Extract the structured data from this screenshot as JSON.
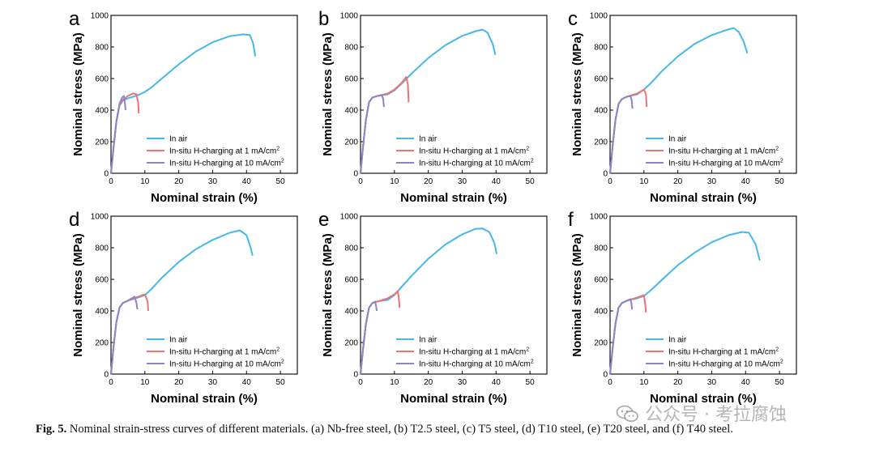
{
  "caption": {
    "label": "Fig. 5.",
    "text": "Nominal strain-stress curves of different materials. (a) Nb-free steel, (b) T2.5 steel, (c) T5 steel, (d) T10 steel, (e) T20 steel, and (f) T40 steel."
  },
  "watermark": {
    "text": "公众号 · 考拉腐蚀",
    "icon": "wechat-icon"
  },
  "colors": {
    "in_air": "#45b8ea",
    "h_1": "#f07272",
    "h_10": "#8a84c8",
    "axis": "#000000"
  },
  "chart_data": [
    {
      "panel": "a",
      "type": "line",
      "xlabel": "Nominal strain (%)",
      "ylabel": "Nominal stress (MPa)",
      "xlim": [
        0,
        55
      ],
      "ylim": [
        0,
        1000
      ],
      "xticks": [
        "0",
        "10",
        "20",
        "30",
        "40",
        "50"
      ],
      "yticks": [
        "0",
        "200",
        "400",
        "600",
        "800",
        "1000"
      ],
      "grid": false,
      "legend_position": "lower-right",
      "series": [
        {
          "name": "In air",
          "x": [
            0,
            0.8,
            1.6,
            2.5,
            3.5,
            5,
            8,
            10,
            12,
            15,
            20,
            25,
            30,
            35,
            39,
            41,
            42,
            42.6
          ],
          "y": [
            0,
            170,
            330,
            430,
            460,
            475,
            495,
            515,
            545,
            600,
            690,
            770,
            830,
            868,
            880,
            875,
            820,
            740
          ]
        },
        {
          "name": "In-situ H-charging at 1 mA/cm²",
          "x": [
            0,
            0.8,
            1.6,
            2.5,
            3.5,
            5,
            6.5,
            7.5,
            8.0,
            8.2
          ],
          "y": [
            0,
            170,
            330,
            430,
            465,
            490,
            505,
            500,
            450,
            380
          ]
        },
        {
          "name": "In-situ H-charging at 10 mA/cm²",
          "x": [
            0,
            0.8,
            1.6,
            2.5,
            3.3,
            3.8,
            4.1,
            4.3
          ],
          "y": [
            0,
            170,
            330,
            440,
            480,
            490,
            450,
            400
          ]
        }
      ]
    },
    {
      "panel": "b",
      "type": "line",
      "xlabel": "Nominal strain (%)",
      "ylabel": "Nominal stress (MPa)",
      "xlim": [
        0,
        55
      ],
      "ylim": [
        0,
        1000
      ],
      "xticks": [
        "0",
        "10",
        "20",
        "30",
        "40",
        "50"
      ],
      "yticks": [
        "0",
        "200",
        "400",
        "600",
        "800",
        "1000"
      ],
      "grid": false,
      "legend_position": "lower-right",
      "series": [
        {
          "name": "In air",
          "x": [
            0,
            0.8,
            1.6,
            2.5,
            3.5,
            5,
            8,
            10,
            12,
            15,
            20,
            25,
            30,
            34,
            36,
            37.5,
            39,
            39.8
          ],
          "y": [
            0,
            180,
            340,
            450,
            480,
            490,
            500,
            525,
            565,
            630,
            730,
            810,
            870,
            900,
            910,
            890,
            820,
            750
          ]
        },
        {
          "name": "In-situ H-charging at 1 mA/cm²",
          "x": [
            0,
            0.8,
            1.6,
            2.5,
            3.5,
            5,
            8,
            10,
            12,
            13.5,
            14,
            14.2
          ],
          "y": [
            0,
            180,
            340,
            450,
            480,
            490,
            505,
            530,
            570,
            610,
            560,
            450
          ]
        },
        {
          "name": "In-situ H-charging at 10 mA/cm²",
          "x": [
            0,
            0.8,
            1.6,
            2.5,
            3.5,
            5,
            6.3,
            6.7,
            6.9
          ],
          "y": [
            0,
            180,
            340,
            450,
            480,
            490,
            495,
            470,
            420
          ]
        }
      ]
    },
    {
      "panel": "c",
      "type": "line",
      "xlabel": "Nominal strain (%)",
      "ylabel": "Nominal stress (MPa)",
      "xlim": [
        0,
        55
      ],
      "ylim": [
        0,
        1000
      ],
      "xticks": [
        "0",
        "10",
        "20",
        "30",
        "40",
        "50"
      ],
      "yticks": [
        "0",
        "200",
        "400",
        "600",
        "800",
        "1000"
      ],
      "grid": false,
      "legend_position": "lower-right",
      "series": [
        {
          "name": "In air",
          "x": [
            0,
            0.8,
            1.6,
            2.5,
            3.5,
            5,
            8,
            10,
            12,
            15,
            20,
            25,
            30,
            34,
            36.5,
            38,
            39.5,
            40.5
          ],
          "y": [
            0,
            180,
            340,
            440,
            470,
            485,
            500,
            530,
            570,
            640,
            740,
            820,
            875,
            905,
            920,
            895,
            830,
            760
          ]
        },
        {
          "name": "In-situ H-charging at 1 mA/cm²",
          "x": [
            0,
            0.8,
            1.6,
            2.5,
            3.5,
            5,
            8,
            10,
            10.6,
            10.8
          ],
          "y": [
            0,
            180,
            340,
            440,
            470,
            485,
            505,
            530,
            500,
            420
          ]
        },
        {
          "name": "In-situ H-charging at 10 mA/cm²",
          "x": [
            0,
            0.8,
            1.6,
            2.5,
            3.5,
            5,
            6,
            6.4,
            6.6
          ],
          "y": [
            0,
            180,
            340,
            440,
            470,
            485,
            490,
            460,
            410
          ]
        }
      ]
    },
    {
      "panel": "d",
      "type": "line",
      "xlabel": "Nominal strain (%)",
      "ylabel": "Nominal stress (MPa)",
      "xlim": [
        0,
        55
      ],
      "ylim": [
        0,
        1000
      ],
      "xticks": [
        "0",
        "10",
        "20",
        "30",
        "40",
        "50"
      ],
      "yticks": [
        "0",
        "200",
        "400",
        "600",
        "800",
        "1000"
      ],
      "grid": false,
      "legend_position": "lower-right",
      "series": [
        {
          "name": "In air",
          "x": [
            0,
            0.8,
            1.6,
            2.5,
            3.5,
            5,
            8,
            10,
            12,
            15,
            20,
            25,
            30,
            35,
            38,
            40,
            41.2,
            41.8
          ],
          "y": [
            0,
            180,
            330,
            420,
            450,
            465,
            485,
            500,
            540,
            610,
            710,
            790,
            850,
            895,
            910,
            880,
            800,
            750
          ]
        },
        {
          "name": "In-situ H-charging at 1 mA/cm²",
          "x": [
            0,
            0.8,
            1.6,
            2.5,
            3.5,
            5,
            8,
            10,
            10.8,
            11.0
          ],
          "y": [
            0,
            180,
            330,
            420,
            450,
            465,
            490,
            505,
            460,
            400
          ]
        },
        {
          "name": "In-situ H-charging at 10 mA/cm²",
          "x": [
            0,
            0.8,
            1.6,
            2.5,
            3.5,
            5,
            7,
            7.5,
            7.8
          ],
          "y": [
            0,
            180,
            330,
            420,
            450,
            465,
            490,
            450,
            410
          ]
        }
      ]
    },
    {
      "panel": "e",
      "type": "line",
      "xlabel": "Nominal strain (%)",
      "ylabel": "Nominal stress (MPa)",
      "xlim": [
        0,
        55
      ],
      "ylim": [
        0,
        1000
      ],
      "xticks": [
        "0",
        "10",
        "20",
        "30",
        "40",
        "50"
      ],
      "yticks": [
        "0",
        "200",
        "400",
        "600",
        "800",
        "1000"
      ],
      "grid": false,
      "legend_position": "lower-right",
      "series": [
        {
          "name": "In air",
          "x": [
            0,
            0.8,
            1.6,
            2.5,
            3.5,
            5,
            8,
            10,
            12,
            15,
            20,
            25,
            30,
            34,
            36,
            38,
            39.5,
            40.2
          ],
          "y": [
            0,
            170,
            320,
            420,
            450,
            460,
            470,
            500,
            550,
            620,
            730,
            820,
            885,
            920,
            922,
            900,
            830,
            760
          ]
        },
        {
          "name": "In-situ H-charging at 1 mA/cm²",
          "x": [
            0,
            0.8,
            1.6,
            2.5,
            3.5,
            5,
            8,
            10,
            11,
            11.3,
            11.5
          ],
          "y": [
            0,
            170,
            320,
            420,
            450,
            460,
            480,
            505,
            525,
            480,
            420
          ]
        },
        {
          "name": "In-situ H-charging at 10 mA/cm²",
          "x": [
            0,
            0.8,
            1.6,
            2.5,
            3.5,
            4.3,
            4.6,
            4.8
          ],
          "y": [
            0,
            170,
            320,
            420,
            450,
            460,
            430,
            400
          ]
        }
      ]
    },
    {
      "panel": "f",
      "type": "line",
      "xlabel": "Nominal strain (%)",
      "ylabel": "Nominal stress (MPa)",
      "xlim": [
        0,
        55
      ],
      "ylim": [
        0,
        1000
      ],
      "xticks": [
        "0",
        "10",
        "20",
        "30",
        "40",
        "50"
      ],
      "yticks": [
        "0",
        "200",
        "400",
        "600",
        "800",
        "1000"
      ],
      "grid": false,
      "legend_position": "lower-right",
      "series": [
        {
          "name": "In air",
          "x": [
            0,
            0.8,
            1.6,
            2.5,
            3.5,
            5,
            8,
            10,
            12,
            15,
            20,
            25,
            30,
            35,
            39,
            41,
            43,
            44.2
          ],
          "y": [
            0,
            170,
            320,
            420,
            450,
            465,
            480,
            495,
            530,
            590,
            690,
            770,
            835,
            880,
            900,
            895,
            820,
            720
          ]
        },
        {
          "name": "In-situ H-charging at 1 mA/cm²",
          "x": [
            0,
            0.8,
            1.6,
            2.5,
            3.5,
            5,
            8,
            10,
            10.4,
            10.6
          ],
          "y": [
            0,
            170,
            320,
            420,
            450,
            465,
            485,
            500,
            440,
            390
          ]
        },
        {
          "name": "In-situ H-charging at 10 mA/cm²",
          "x": [
            0,
            0.8,
            1.6,
            2.5,
            3.5,
            5,
            6,
            6.3,
            6.5
          ],
          "y": [
            0,
            170,
            320,
            420,
            450,
            465,
            475,
            450,
            410
          ]
        }
      ]
    }
  ]
}
